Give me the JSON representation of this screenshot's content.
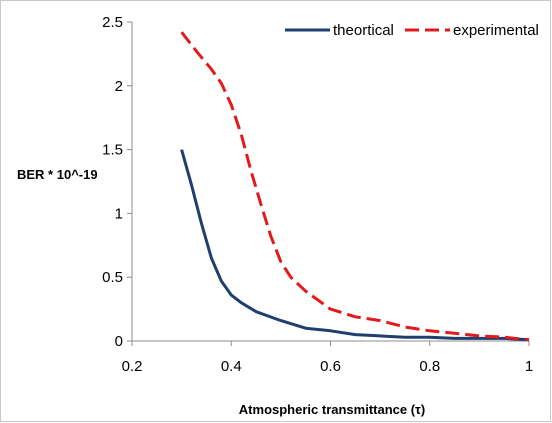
{
  "chart_data": {
    "type": "line",
    "title": "",
    "xlabel": "Atmospheric transmittance (τ)",
    "ylabel": "BER * 10^-19",
    "xlim": [
      0.2,
      1.0
    ],
    "ylim": [
      0,
      2.5
    ],
    "x_ticks": [
      "0.2",
      "0.4",
      "0.6",
      "0.8",
      "1"
    ],
    "y_ticks": [
      "0",
      "0.5",
      "1",
      "1.5",
      "2",
      "2.5"
    ],
    "grid": false,
    "legend_position": "top-right",
    "series": [
      {
        "name": "theortical",
        "color": "#1f3f6f",
        "style": "solid",
        "x": [
          0.3,
          0.32,
          0.34,
          0.36,
          0.38,
          0.4,
          0.42,
          0.45,
          0.5,
          0.55,
          0.6,
          0.65,
          0.7,
          0.75,
          0.8,
          0.85,
          0.9,
          0.95,
          1.0
        ],
        "y": [
          1.5,
          1.22,
          0.92,
          0.65,
          0.47,
          0.36,
          0.3,
          0.23,
          0.16,
          0.1,
          0.08,
          0.05,
          0.04,
          0.03,
          0.03,
          0.02,
          0.02,
          0.02,
          0.01
        ]
      },
      {
        "name": "experimental",
        "color": "#e31a1c",
        "style": "dashed",
        "x": [
          0.3,
          0.33,
          0.36,
          0.38,
          0.4,
          0.42,
          0.44,
          0.46,
          0.48,
          0.5,
          0.52,
          0.55,
          0.6,
          0.65,
          0.7,
          0.75,
          0.8,
          0.85,
          0.9,
          0.95,
          1.0
        ],
        "y": [
          2.42,
          2.27,
          2.13,
          2.02,
          1.85,
          1.62,
          1.33,
          1.07,
          0.82,
          0.62,
          0.5,
          0.39,
          0.25,
          0.19,
          0.16,
          0.11,
          0.08,
          0.06,
          0.04,
          0.03,
          0.01
        ]
      }
    ]
  }
}
